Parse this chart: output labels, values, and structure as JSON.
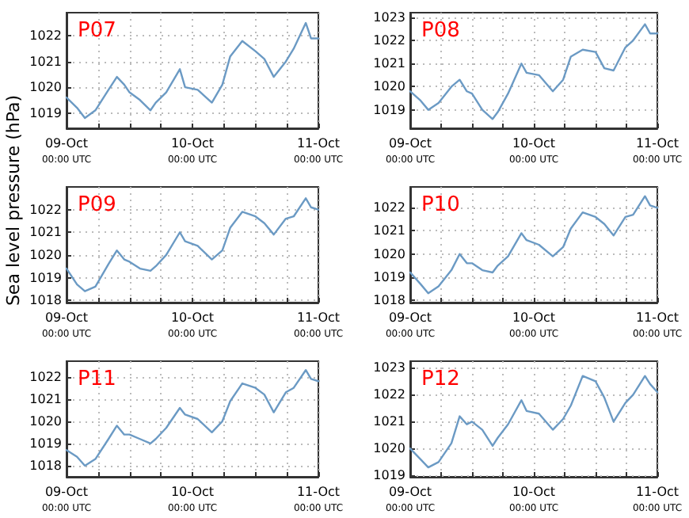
{
  "chart_data": [
    {
      "type": "line",
      "title": "P07",
      "xlim": [
        "--10-09T00:00",
        "--10-11T00:00"
      ],
      "xticks": [
        {
          "value": "--10-09T00:00",
          "label": "09-Oct\n00:00 UTC"
        },
        {
          "value": "--10-09T06:00",
          "label": null
        },
        {
          "value": "--10-09T12:00",
          "label": null
        },
        {
          "value": "--10-09T18:00",
          "label": null
        },
        {
          "value": "--10-10T00:00",
          "label": "10-Oct\n00:00 UTC"
        },
        {
          "value": "--10-10T06:00",
          "label": null
        },
        {
          "value": "--10-10T12:00",
          "label": null
        },
        {
          "value": "--10-10T18:00",
          "label": null
        },
        {
          "value": "--10-11T00:00",
          "label": "11-Oct\n00:00 UTC"
        }
      ],
      "ylim": [
        1018.4,
        1022.9
      ],
      "yticks": [
        1019,
        1020,
        1021,
        1022
      ],
      "grid": true,
      "marker": "none",
      "line_style": "solid",
      "series": [
        {
          "color": "#6b9ac4",
          "x": [
            "--10-09T00:00",
            "--10-09T02:00",
            "--10-09T03:30",
            "--10-09T05:30",
            "--10-09T08:00",
            "--10-09T09:36",
            "--10-09T11:00",
            "--10-09T12:00",
            "--10-09T14:00",
            "--10-09T16:00",
            "--10-09T17:00",
            "--10-09T19:00",
            "--10-09T21:36",
            "--10-09T22:36",
            "--10-10T01:00",
            "--10-10T03:42",
            "--10-10T05:42",
            "--10-10T07:12",
            "--10-10T09:30",
            "--10-10T12:00",
            "--10-10T13:42",
            "--10-10T15:30",
            "--10-10T17:48",
            "--10-10T19:18",
            "--10-10T21:36",
            "--10-10T22:36",
            "--10-11T00:00"
          ],
          "values": [
            1019.6,
            1019.2,
            1018.8,
            1019.1,
            1019.9,
            1020.4,
            1020.1,
            1019.8,
            1019.5,
            1019.1,
            1019.4,
            1019.8,
            1020.7,
            1020.0,
            1019.9,
            1019.4,
            1020.1,
            1021.2,
            1021.8,
            1021.4,
            1021.1,
            1020.4,
            1021.0,
            1021.5,
            1022.5,
            1021.9,
            1021.9
          ]
        }
      ]
    },
    {
      "type": "line",
      "title": "P08",
      "xlim": [
        "--10-09T00:00",
        "--10-11T00:00"
      ],
      "xticks": [
        {
          "value": "--10-09T00:00",
          "label": "09-Oct\n00:00 UTC"
        },
        {
          "value": "--10-09T06:00",
          "label": null
        },
        {
          "value": "--10-09T12:00",
          "label": null
        },
        {
          "value": "--10-09T18:00",
          "label": null
        },
        {
          "value": "--10-10T00:00",
          "label": "10-Oct\n00:00 UTC"
        },
        {
          "value": "--10-10T06:00",
          "label": null
        },
        {
          "value": "--10-10T12:00",
          "label": null
        },
        {
          "value": "--10-10T18:00",
          "label": null
        },
        {
          "value": "--10-11T00:00",
          "label": "11-Oct\n00:00 UTC"
        }
      ],
      "ylim": [
        1018.2,
        1023.2
      ],
      "yticks": [
        1019,
        1020,
        1021,
        1022,
        1023
      ],
      "grid": true,
      "marker": "none",
      "line_style": "solid",
      "series": [
        {
          "color": "#6b9ac4",
          "x": [
            "--10-09T00:00",
            "--10-09T02:00",
            "--10-09T03:30",
            "--10-09T05:30",
            "--10-09T08:00",
            "--10-09T09:36",
            "--10-09T11:00",
            "--10-09T12:00",
            "--10-09T14:00",
            "--10-09T16:00",
            "--10-09T17:00",
            "--10-09T19:00",
            "--10-09T21:36",
            "--10-09T22:36",
            "--10-10T01:00",
            "--10-10T03:42",
            "--10-10T05:42",
            "--10-10T07:12",
            "--10-10T09:30",
            "--10-10T12:00",
            "--10-10T13:42",
            "--10-10T15:30",
            "--10-10T17:48",
            "--10-10T19:18",
            "--10-10T21:36",
            "--10-10T22:36",
            "--10-11T00:00"
          ],
          "values": [
            1019.8,
            1019.4,
            1019.0,
            1019.3,
            1020.0,
            1020.3,
            1019.8,
            1019.7,
            1019.0,
            1018.6,
            1018.9,
            1019.7,
            1021.0,
            1020.6,
            1020.5,
            1019.8,
            1020.3,
            1021.3,
            1021.6,
            1021.5,
            1020.8,
            1020.7,
            1021.7,
            1022.0,
            1022.7,
            1022.3,
            1022.3
          ]
        }
      ]
    },
    {
      "type": "line",
      "title": "P09",
      "ylabel": "Sea level pressure (hPa)",
      "xlim": [
        "--10-09T00:00",
        "--10-11T00:00"
      ],
      "xticks": [
        {
          "value": "--10-09T00:00",
          "label": "09-Oct\n00:00 UTC"
        },
        {
          "value": "--10-09T06:00",
          "label": null
        },
        {
          "value": "--10-09T12:00",
          "label": null
        },
        {
          "value": "--10-09T18:00",
          "label": null
        },
        {
          "value": "--10-10T00:00",
          "label": "10-Oct\n00:00 UTC"
        },
        {
          "value": "--10-10T06:00",
          "label": null
        },
        {
          "value": "--10-10T12:00",
          "label": null
        },
        {
          "value": "--10-10T18:00",
          "label": null
        },
        {
          "value": "--10-11T00:00",
          "label": "11-Oct\n00:00 UTC"
        }
      ],
      "ylim": [
        1017.9,
        1023
      ],
      "yticks": [
        1018,
        1019,
        1020,
        1021,
        1022
      ],
      "grid": true,
      "marker": "none",
      "line_style": "solid",
      "series": [
        {
          "color": "#6b9ac4",
          "x": [
            "--10-09T00:00",
            "--10-09T02:00",
            "--10-09T03:30",
            "--10-09T05:30",
            "--10-09T08:00",
            "--10-09T09:36",
            "--10-09T11:00",
            "--10-09T12:00",
            "--10-09T14:00",
            "--10-09T16:00",
            "--10-09T17:00",
            "--10-09T19:00",
            "--10-09T21:36",
            "--10-09T22:36",
            "--10-10T01:00",
            "--10-10T03:42",
            "--10-10T05:42",
            "--10-10T07:12",
            "--10-10T09:30",
            "--10-10T12:00",
            "--10-10T13:42",
            "--10-10T15:30",
            "--10-10T17:48",
            "--10-10T19:18",
            "--10-10T21:36",
            "--10-10T22:36",
            "--10-11T00:00"
          ],
          "values": [
            1019.4,
            1018.7,
            1018.4,
            1018.6,
            1019.6,
            1020.2,
            1019.8,
            1019.7,
            1019.4,
            1019.3,
            1019.5,
            1020.0,
            1021.0,
            1020.6,
            1020.4,
            1019.8,
            1020.2,
            1021.2,
            1021.9,
            1021.7,
            1021.4,
            1020.9,
            1021.6,
            1021.7,
            1022.5,
            1022.1,
            1022.0
          ]
        }
      ]
    },
    {
      "type": "line",
      "title": "P10",
      "xlim": [
        "--10-09T00:00",
        "--10-11T00:00"
      ],
      "xticks": [
        {
          "value": "--10-09T00:00",
          "label": "09-Oct\n00:00 UTC"
        },
        {
          "value": "--10-09T06:00",
          "label": null
        },
        {
          "value": "--10-09T12:00",
          "label": null
        },
        {
          "value": "--10-09T18:00",
          "label": null
        },
        {
          "value": "--10-10T00:00",
          "label": "10-Oct\n00:00 UTC"
        },
        {
          "value": "--10-10T06:00",
          "label": null
        },
        {
          "value": "--10-10T12:00",
          "label": null
        },
        {
          "value": "--10-10T18:00",
          "label": null
        },
        {
          "value": "--10-11T00:00",
          "label": "11-Oct\n00:00 UTC"
        }
      ],
      "ylim": [
        1017.9,
        1022.9
      ],
      "yticks": [
        1018,
        1019,
        1020,
        1021,
        1022
      ],
      "grid": true,
      "marker": "none",
      "line_style": "solid",
      "series": [
        {
          "color": "#6b9ac4",
          "x": [
            "--10-09T00:00",
            "--10-09T02:00",
            "--10-09T03:30",
            "--10-09T05:30",
            "--10-09T08:00",
            "--10-09T09:36",
            "--10-09T11:00",
            "--10-09T12:00",
            "--10-09T14:00",
            "--10-09T16:00",
            "--10-09T17:00",
            "--10-09T19:00",
            "--10-09T21:36",
            "--10-09T22:36",
            "--10-10T01:00",
            "--10-10T03:42",
            "--10-10T05:42",
            "--10-10T07:12",
            "--10-10T09:30",
            "--10-10T12:00",
            "--10-10T13:42",
            "--10-10T15:30",
            "--10-10T17:48",
            "--10-10T19:18",
            "--10-10T21:36",
            "--10-10T22:36",
            "--10-11T00:00"
          ],
          "values": [
            1019.2,
            1018.7,
            1018.3,
            1018.6,
            1019.3,
            1020.0,
            1019.6,
            1019.6,
            1019.3,
            1019.2,
            1019.5,
            1019.9,
            1020.9,
            1020.6,
            1020.4,
            1019.9,
            1020.3,
            1021.1,
            1021.8,
            1021.6,
            1021.3,
            1020.8,
            1021.6,
            1021.7,
            1022.5,
            1022.1,
            1022.0
          ]
        }
      ]
    },
    {
      "type": "line",
      "title": "P11",
      "xlim": [
        "--10-09T00:00",
        "--10-11T00:00"
      ],
      "xticks": [
        {
          "value": "--10-09T00:00",
          "label": "09-Oct\n00:00 UTC"
        },
        {
          "value": "--10-09T06:00",
          "label": null
        },
        {
          "value": "--10-09T12:00",
          "label": null
        },
        {
          "value": "--10-09T18:00",
          "label": null
        },
        {
          "value": "--10-10T00:00",
          "label": "10-Oct\n00:00 UTC"
        },
        {
          "value": "--10-10T06:00",
          "label": null
        },
        {
          "value": "--10-10T12:00",
          "label": null
        },
        {
          "value": "--10-10T18:00",
          "label": null
        },
        {
          "value": "--10-11T00:00",
          "label": "11-Oct\n00:00 UTC"
        }
      ],
      "ylim": [
        1017.5,
        1022.7
      ],
      "yticks": [
        1018,
        1019,
        1020,
        1021,
        1022
      ],
      "grid": true,
      "marker": "none",
      "line_style": "solid",
      "series": [
        {
          "color": "#6b9ac4",
          "x": [
            "--10-09T00:00",
            "--10-09T02:00",
            "--10-09T03:30",
            "--10-09T05:30",
            "--10-09T08:00",
            "--10-09T09:36",
            "--10-09T11:00",
            "--10-09T12:00",
            "--10-09T14:00",
            "--10-09T16:00",
            "--10-09T17:00",
            "--10-09T19:00",
            "--10-09T21:36",
            "--10-09T22:36",
            "--10-10T01:00",
            "--10-10T03:42",
            "--10-10T05:42",
            "--10-10T07:12",
            "--10-10T09:30",
            "--10-10T12:00",
            "--10-10T13:42",
            "--10-10T15:30",
            "--10-10T17:48",
            "--10-10T19:18",
            "--10-10T21:36",
            "--10-10T22:36",
            "--10-11T00:00"
          ],
          "values": [
            1018.7,
            1018.4,
            1018.0,
            1018.3,
            1019.2,
            1019.8,
            1019.4,
            1019.4,
            1019.2,
            1019.0,
            1019.2,
            1019.7,
            1020.6,
            1020.3,
            1020.1,
            1019.5,
            1020.0,
            1020.9,
            1021.7,
            1021.5,
            1021.2,
            1020.4,
            1021.3,
            1021.5,
            1022.3,
            1021.9,
            1021.8
          ]
        }
      ]
    },
    {
      "type": "line",
      "title": "P12",
      "xlim": [
        "--10-09T00:00",
        "--10-11T00:00"
      ],
      "xticks": [
        {
          "value": "--10-09T00:00",
          "label": "09-Oct\n00:00 UTC"
        },
        {
          "value": "--10-09T06:00",
          "label": null
        },
        {
          "value": "--10-09T12:00",
          "label": null
        },
        {
          "value": "--10-09T18:00",
          "label": null
        },
        {
          "value": "--10-10T00:00",
          "label": "10-Oct\n00:00 UTC"
        },
        {
          "value": "--10-10T06:00",
          "label": null
        },
        {
          "value": "--10-10T12:00",
          "label": null
        },
        {
          "value": "--10-10T18:00",
          "label": null
        },
        {
          "value": "--10-11T00:00",
          "label": "11-Oct\n00:00 UTC"
        }
      ],
      "ylim": [
        1018.95,
        1023.25
      ],
      "yticks": [
        1019,
        1020,
        1021,
        1022,
        1023
      ],
      "grid": true,
      "marker": "none",
      "line_style": "solid",
      "series": [
        {
          "color": "#6b9ac4",
          "x": [
            "--10-09T00:00",
            "--10-09T02:00",
            "--10-09T03:30",
            "--10-09T05:30",
            "--10-09T08:00",
            "--10-09T09:36",
            "--10-09T11:00",
            "--10-09T12:00",
            "--10-09T14:00",
            "--10-09T16:00",
            "--10-09T17:00",
            "--10-09T19:00",
            "--10-09T21:36",
            "--10-09T22:36",
            "--10-10T01:00",
            "--10-10T03:42",
            "--10-10T05:42",
            "--10-10T07:12",
            "--10-10T09:30",
            "--10-10T12:00",
            "--10-10T13:42",
            "--10-10T15:30",
            "--10-10T17:48",
            "--10-10T19:18",
            "--10-10T21:36",
            "--10-10T22:36",
            "--10-11T00:00"
          ],
          "values": [
            1020.0,
            1019.6,
            1019.3,
            1019.5,
            1020.2,
            1021.2,
            1020.9,
            1021.0,
            1020.7,
            1020.1,
            1020.4,
            1020.9,
            1021.8,
            1021.4,
            1021.3,
            1020.7,
            1021.1,
            1021.6,
            1022.7,
            1022.5,
            1021.9,
            1021.0,
            1021.7,
            1022.0,
            1022.7,
            1022.4,
            1022.1
          ]
        }
      ]
    }
  ]
}
